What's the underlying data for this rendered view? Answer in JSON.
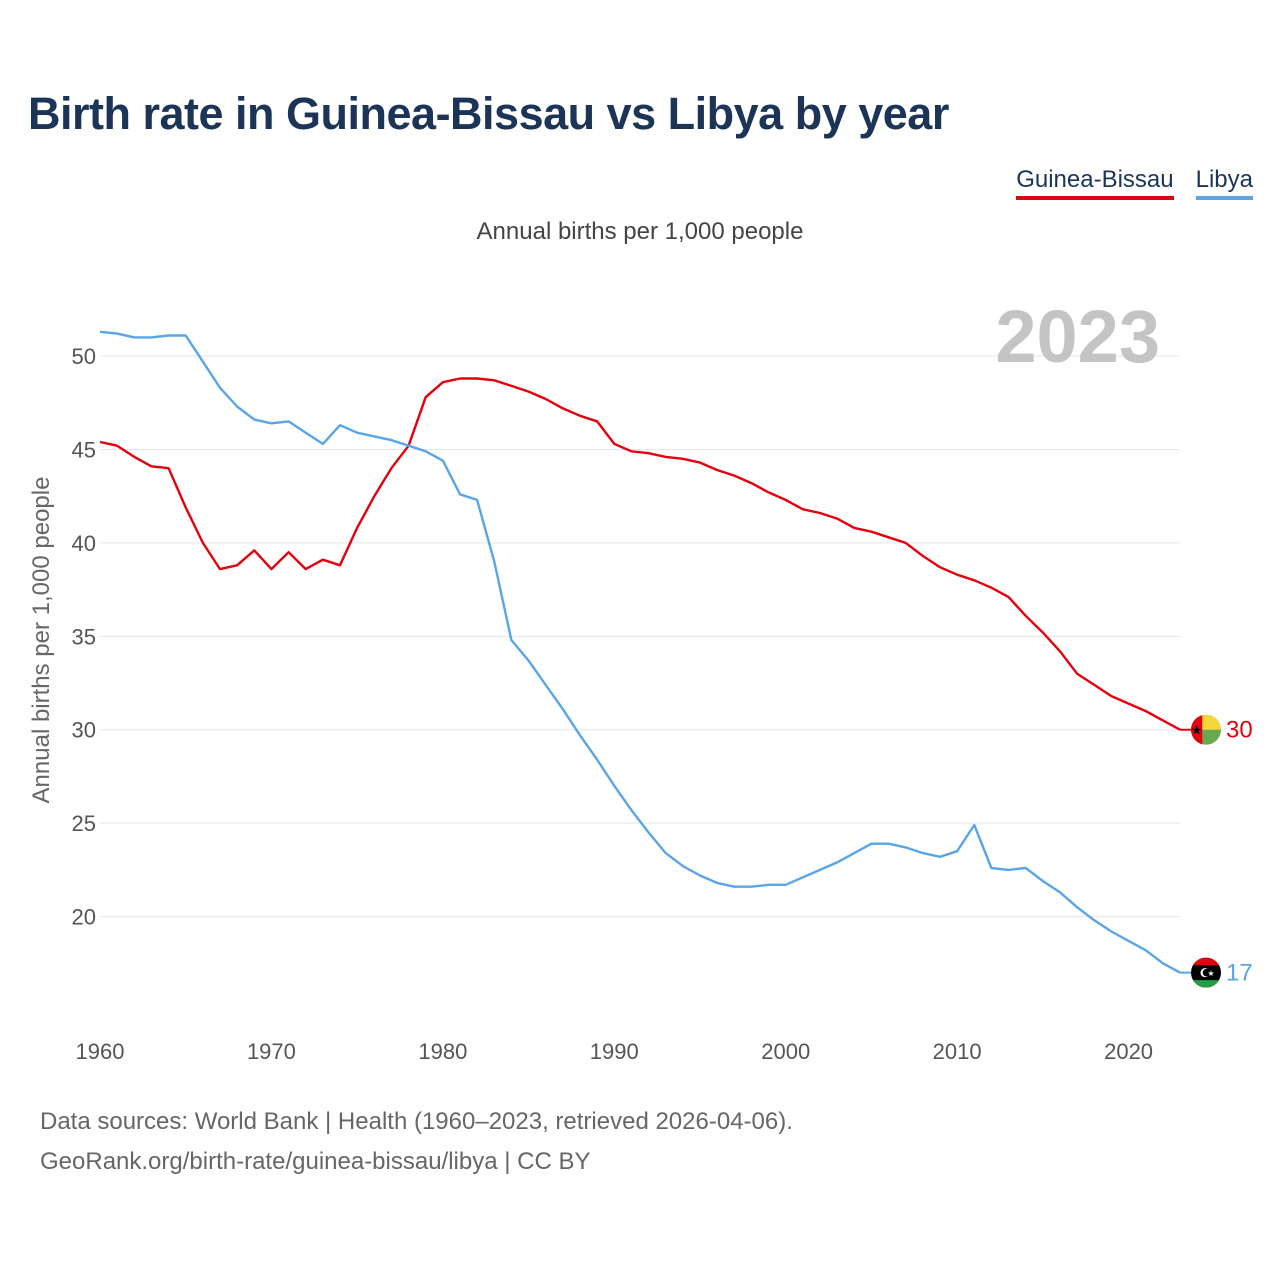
{
  "title": "Birth rate in Guinea-Bissau vs Libya by year",
  "legend": {
    "guinea_bissau": "Guinea-Bissau",
    "libya": "Libya"
  },
  "subtitle": "Annual births per 1,000 people",
  "year_watermark": "2023",
  "footer": {
    "line1": "Data sources: World Bank | Health (1960–2023, retrieved 2026-04-06).",
    "line2": "GeoRank.org/birth-rate/guinea-bissau/libya | CC BY"
  },
  "chart_data": {
    "type": "line",
    "title": "Birth rate in Guinea-Bissau vs Libya by year",
    "xlabel": "",
    "ylabel": "Annual births per 1,000 people",
    "xlim": [
      1960,
      2023
    ],
    "ylim": [
      15,
      53
    ],
    "xticks": [
      1960,
      1970,
      1980,
      1990,
      2000,
      2010,
      2020
    ],
    "yticks": [
      20,
      25,
      30,
      35,
      40,
      45,
      50
    ],
    "grid": true,
    "series": [
      {
        "name": "Guinea-Bissau",
        "color": "#e3000f",
        "end_label": "30",
        "x": [
          1960,
          1961,
          1962,
          1963,
          1964,
          1965,
          1966,
          1967,
          1968,
          1969,
          1970,
          1971,
          1972,
          1973,
          1974,
          1975,
          1976,
          1977,
          1978,
          1979,
          1980,
          1981,
          1982,
          1983,
          1984,
          1985,
          1986,
          1987,
          1988,
          1989,
          1990,
          1991,
          1992,
          1993,
          1994,
          1995,
          1996,
          1997,
          1998,
          1999,
          2000,
          2001,
          2002,
          2003,
          2004,
          2005,
          2006,
          2007,
          2008,
          2009,
          2010,
          2011,
          2012,
          2013,
          2014,
          2015,
          2016,
          2017,
          2018,
          2019,
          2020,
          2021,
          2022,
          2023
        ],
        "values": [
          45.4,
          45.2,
          44.6,
          44.1,
          44.0,
          41.9,
          40.0,
          38.6,
          38.8,
          39.6,
          38.6,
          39.5,
          38.6,
          39.1,
          38.8,
          40.8,
          42.5,
          44.0,
          45.2,
          47.8,
          48.6,
          48.8,
          48.8,
          48.7,
          48.4,
          48.1,
          47.7,
          47.2,
          46.8,
          46.5,
          45.3,
          44.9,
          44.8,
          44.6,
          44.5,
          44.3,
          43.9,
          43.6,
          43.2,
          42.7,
          42.3,
          41.8,
          41.6,
          41.3,
          40.8,
          40.6,
          40.3,
          40.0,
          39.3,
          38.7,
          38.3,
          38.0,
          37.6,
          37.1,
          36.1,
          35.2,
          34.2,
          33.0,
          32.4,
          31.8,
          31.4,
          31.0,
          30.5,
          30.0
        ]
      },
      {
        "name": "Libya",
        "color": "#5aa5e6",
        "end_label": "17",
        "x": [
          1960,
          1961,
          1962,
          1963,
          1964,
          1965,
          1966,
          1967,
          1968,
          1969,
          1970,
          1971,
          1972,
          1973,
          1974,
          1975,
          1976,
          1977,
          1978,
          1979,
          1980,
          1981,
          1982,
          1983,
          1984,
          1985,
          1986,
          1987,
          1988,
          1989,
          1990,
          1991,
          1992,
          1993,
          1994,
          1995,
          1996,
          1997,
          1998,
          1999,
          2000,
          2001,
          2002,
          2003,
          2004,
          2005,
          2006,
          2007,
          2008,
          2009,
          2010,
          2011,
          2012,
          2013,
          2014,
          2015,
          2016,
          2017,
          2018,
          2019,
          2020,
          2021,
          2022,
          2023
        ],
        "values": [
          51.3,
          51.2,
          51.0,
          51.0,
          51.1,
          51.1,
          49.7,
          48.3,
          47.3,
          46.6,
          46.4,
          46.5,
          45.9,
          45.3,
          46.3,
          45.9,
          45.7,
          45.5,
          45.2,
          44.9,
          44.4,
          42.6,
          42.3,
          39.0,
          34.8,
          33.7,
          32.4,
          31.1,
          29.7,
          28.4,
          27.0,
          25.7,
          24.5,
          23.4,
          22.7,
          22.2,
          21.8,
          21.6,
          21.6,
          21.7,
          21.7,
          22.1,
          22.5,
          22.9,
          23.4,
          23.9,
          23.9,
          23.7,
          23.4,
          23.2,
          23.5,
          24.9,
          22.6,
          22.5,
          22.6,
          21.9,
          21.3,
          20.5,
          19.8,
          19.2,
          18.7,
          18.2,
          17.5,
          17.0
        ]
      }
    ]
  },
  "colors": {
    "title": "#1c3557",
    "grid": "#e6e6e6",
    "axis_text": "#555555",
    "watermark": "#c4c4c4"
  },
  "flags": {
    "guinea_bissau": "guinea-bissau-flag-icon",
    "libya": "libya-flag-icon"
  }
}
